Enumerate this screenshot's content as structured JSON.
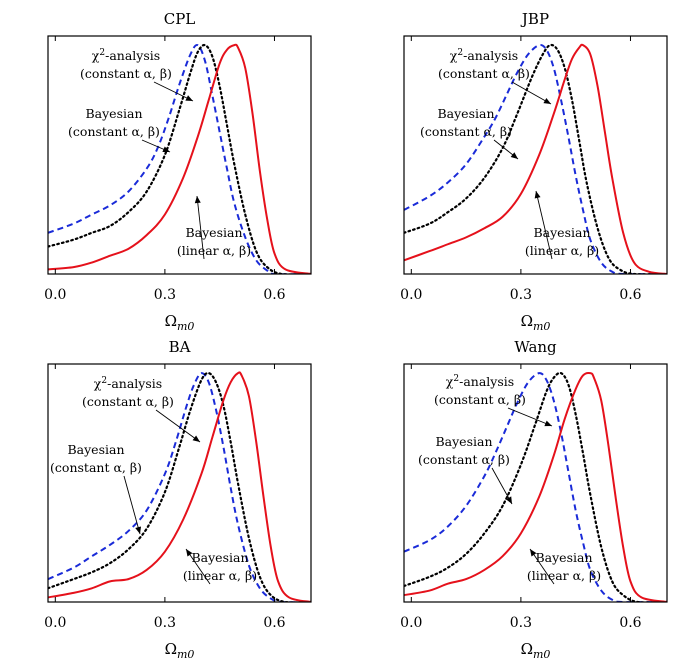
{
  "chart_data": [
    {
      "type": "line",
      "title": "CPL",
      "xlabel": "Ωm0",
      "xlim": [
        -0.02,
        0.7
      ],
      "ylim": [
        0,
        1.04
      ],
      "xticks": [
        0.0,
        0.3,
        0.6
      ],
      "xtick_labels": [
        "0.0",
        "0.3",
        "0.6"
      ],
      "series": [
        {
          "name": "χ2-analysis (constant α,β)",
          "color": "#1a2bd8",
          "style": "dashed",
          "x": [
            -0.02,
            0.05,
            0.1,
            0.15,
            0.2,
            0.25,
            0.28,
            0.31,
            0.34,
            0.37,
            0.39,
            0.41,
            0.43,
            0.45,
            0.47,
            0.49,
            0.52,
            0.55,
            0.58,
            0.6,
            0.7
          ],
          "y": [
            0.18,
            0.22,
            0.26,
            0.3,
            0.36,
            0.46,
            0.55,
            0.68,
            0.83,
            0.96,
            1.0,
            0.93,
            0.78,
            0.62,
            0.46,
            0.31,
            0.16,
            0.06,
            0.015,
            0.0,
            0.0
          ]
        },
        {
          "name": "Bayesian (constant α,β)",
          "color": "#000000",
          "style": "dotted",
          "x": [
            -0.02,
            0.05,
            0.1,
            0.15,
            0.2,
            0.25,
            0.3,
            0.34,
            0.37,
            0.39,
            0.41,
            0.43,
            0.45,
            0.47,
            0.49,
            0.52,
            0.55,
            0.58,
            0.62,
            0.7
          ],
          "y": [
            0.12,
            0.15,
            0.18,
            0.21,
            0.27,
            0.36,
            0.52,
            0.72,
            0.88,
            0.97,
            1.0,
            0.95,
            0.82,
            0.65,
            0.48,
            0.26,
            0.1,
            0.03,
            0.0,
            0.0
          ]
        },
        {
          "name": "Bayesian (linear α,β)",
          "color": "#e5111b",
          "style": "solid",
          "x": [
            -0.02,
            0.05,
            0.1,
            0.15,
            0.2,
            0.25,
            0.3,
            0.35,
            0.39,
            0.42,
            0.45,
            0.47,
            0.49,
            0.5,
            0.52,
            0.54,
            0.56,
            0.58,
            0.6,
            0.63,
            0.7
          ],
          "y": [
            0.02,
            0.03,
            0.05,
            0.08,
            0.11,
            0.17,
            0.26,
            0.42,
            0.6,
            0.76,
            0.92,
            0.98,
            1.0,
            0.99,
            0.9,
            0.7,
            0.45,
            0.24,
            0.09,
            0.02,
            0.0
          ]
        }
      ],
      "annotations": [
        {
          "lines": [
            "χ2-analysis",
            "(constant α, β)"
          ],
          "x": 0.13,
          "y": 0.92,
          "ax": 0.33,
          "ay": 0.8
        },
        {
          "lines": [
            "Bayesian",
            "(constant α, β)"
          ],
          "x": 0.12,
          "y": 0.7,
          "ax": 0.26,
          "ay": 0.53
        },
        {
          "lines": [
            "Bayesian",
            "(linear α, β)"
          ],
          "x": 0.33,
          "y": 0.12,
          "ax": 0.35,
          "ay": 0.3
        }
      ]
    },
    {
      "type": "line",
      "title": "JBP",
      "xlabel": "Ωm0",
      "xlim": [
        -0.02,
        0.7
      ],
      "ylim": [
        0,
        1.04
      ],
      "xticks": [
        0.0,
        0.3,
        0.6
      ],
      "xtick_labels": [
        "0.0",
        "0.3",
        "0.6"
      ],
      "series": [
        {
          "name": "χ2-analysis (constant α,β)",
          "color": "#1a2bd8",
          "style": "dashed",
          "x": [
            -0.02,
            0.05,
            0.1,
            0.15,
            0.2,
            0.23,
            0.26,
            0.29,
            0.32,
            0.35,
            0.37,
            0.39,
            0.41,
            0.43,
            0.45,
            0.47,
            0.49,
            0.52,
            0.55,
            0.58,
            0.7
          ],
          "y": [
            0.28,
            0.34,
            0.4,
            0.48,
            0.6,
            0.68,
            0.78,
            0.88,
            0.96,
            1.0,
            0.98,
            0.9,
            0.76,
            0.6,
            0.43,
            0.28,
            0.15,
            0.05,
            0.01,
            0.0,
            0.0
          ]
        },
        {
          "name": "Bayesian (constant α,β)",
          "color": "#000000",
          "style": "dotted",
          "x": [
            -0.02,
            0.05,
            0.1,
            0.15,
            0.2,
            0.25,
            0.29,
            0.33,
            0.36,
            0.38,
            0.4,
            0.42,
            0.44,
            0.46,
            0.48,
            0.51,
            0.54,
            0.57,
            0.61,
            0.7
          ],
          "y": [
            0.18,
            0.22,
            0.27,
            0.33,
            0.42,
            0.55,
            0.7,
            0.86,
            0.96,
            1.0,
            0.98,
            0.9,
            0.76,
            0.58,
            0.4,
            0.2,
            0.07,
            0.02,
            0.0,
            0.0
          ]
        },
        {
          "name": "Bayesian (linear α,β)",
          "color": "#e5111b",
          "style": "solid",
          "x": [
            -0.02,
            0.05,
            0.1,
            0.15,
            0.2,
            0.25,
            0.3,
            0.35,
            0.39,
            0.42,
            0.44,
            0.46,
            0.47,
            0.49,
            0.51,
            0.53,
            0.55,
            0.58,
            0.61,
            0.65,
            0.7
          ],
          "y": [
            0.06,
            0.1,
            0.13,
            0.16,
            0.2,
            0.25,
            0.35,
            0.52,
            0.7,
            0.85,
            0.94,
            0.99,
            1.0,
            0.96,
            0.82,
            0.62,
            0.42,
            0.18,
            0.05,
            0.01,
            0.0
          ]
        }
      ],
      "annotations": [
        {
          "lines": [
            "χ2-analysis",
            "(constant α, β)"
          ],
          "x": 0.14,
          "y": 0.92,
          "ax": 0.3,
          "ay": 0.85
        },
        {
          "lines": [
            "Bayesian",
            "(constant α, β)"
          ],
          "x": 0.12,
          "y": 0.7,
          "ax": 0.26,
          "ay": 0.52
        },
        {
          "lines": [
            "Bayesian",
            "(linear α, β)"
          ],
          "x": 0.36,
          "y": 0.14,
          "ax": 0.32,
          "ay": 0.36
        }
      ]
    },
    {
      "type": "line",
      "title": "BA",
      "xlabel": "Ωm0",
      "xlim": [
        -0.02,
        0.7
      ],
      "ylim": [
        0,
        1.04
      ],
      "xticks": [
        0.0,
        0.3,
        0.6
      ],
      "xtick_labels": [
        "0.0",
        "0.3",
        "0.6"
      ],
      "series": [
        {
          "name": "χ2-analysis (constant α,β)",
          "color": "#1a2bd8",
          "style": "dashed",
          "x": [
            -0.02,
            0.05,
            0.1,
            0.15,
            0.2,
            0.25,
            0.3,
            0.33,
            0.36,
            0.38,
            0.4,
            0.42,
            0.44,
            0.46,
            0.48,
            0.5,
            0.53,
            0.56,
            0.59,
            0.62,
            0.7
          ],
          "y": [
            0.1,
            0.15,
            0.2,
            0.25,
            0.31,
            0.4,
            0.56,
            0.7,
            0.86,
            0.95,
            1.0,
            0.96,
            0.84,
            0.68,
            0.5,
            0.34,
            0.16,
            0.06,
            0.015,
            0.0,
            0.0
          ]
        },
        {
          "name": "Bayesian (constant α,β)",
          "color": "#000000",
          "style": "dotted",
          "x": [
            -0.02,
            0.05,
            0.1,
            0.15,
            0.2,
            0.25,
            0.3,
            0.34,
            0.37,
            0.4,
            0.42,
            0.44,
            0.46,
            0.48,
            0.5,
            0.53,
            0.56,
            0.59,
            0.63,
            0.7
          ],
          "y": [
            0.06,
            0.1,
            0.13,
            0.17,
            0.23,
            0.32,
            0.48,
            0.68,
            0.84,
            0.97,
            1.0,
            0.96,
            0.86,
            0.7,
            0.52,
            0.28,
            0.11,
            0.03,
            0.0,
            0.0
          ]
        },
        {
          "name": "Bayesian (linear α,β)",
          "color": "#e5111b",
          "style": "solid",
          "x": [
            -0.02,
            0.05,
            0.1,
            0.15,
            0.2,
            0.25,
            0.3,
            0.35,
            0.4,
            0.43,
            0.46,
            0.48,
            0.5,
            0.51,
            0.53,
            0.55,
            0.57,
            0.59,
            0.61,
            0.64,
            0.7
          ],
          "y": [
            0.02,
            0.04,
            0.06,
            0.09,
            0.1,
            0.14,
            0.22,
            0.36,
            0.56,
            0.72,
            0.88,
            0.96,
            1.0,
            0.99,
            0.9,
            0.7,
            0.46,
            0.24,
            0.09,
            0.02,
            0.0
          ]
        }
      ],
      "annotations": [
        {
          "lines": [
            "χ2-analysis",
            "(constant α, β)"
          ],
          "x": 0.13,
          "y": 0.92,
          "ax": 0.35,
          "ay": 0.76
        },
        {
          "lines": [
            "Bayesian",
            "(constant α, β)"
          ],
          "x": 0.1,
          "y": 0.62,
          "ax": 0.2,
          "ay": 0.28
        },
        {
          "lines": [
            "Bayesian",
            "(linear α, β)"
          ],
          "x": 0.36,
          "y": 0.16,
          "ax": 0.28,
          "ay": 0.22
        }
      ]
    },
    {
      "type": "line",
      "title": "Wang",
      "xlabel": "Ωm0",
      "xlim": [
        -0.02,
        0.7
      ],
      "ylim": [
        0,
        1.04
      ],
      "xticks": [
        0.0,
        0.3,
        0.6
      ],
      "xtick_labels": [
        "0.0",
        "0.3",
        "0.6"
      ],
      "series": [
        {
          "name": "χ2-analysis (constant α,β)",
          "color": "#1a2bd8",
          "style": "dashed",
          "x": [
            -0.02,
            0.05,
            0.1,
            0.15,
            0.2,
            0.23,
            0.26,
            0.29,
            0.32,
            0.35,
            0.37,
            0.39,
            0.41,
            0.43,
            0.45,
            0.47,
            0.49,
            0.52,
            0.55,
            0.58,
            0.7
          ],
          "y": [
            0.22,
            0.27,
            0.33,
            0.42,
            0.55,
            0.65,
            0.76,
            0.87,
            0.96,
            1.0,
            0.97,
            0.88,
            0.74,
            0.57,
            0.4,
            0.26,
            0.14,
            0.05,
            0.01,
            0.0,
            0.0
          ]
        },
        {
          "name": "Bayesian (constant α,β)",
          "color": "#000000",
          "style": "dotted",
          "x": [
            -0.02,
            0.05,
            0.1,
            0.15,
            0.2,
            0.25,
            0.3,
            0.34,
            0.37,
            0.39,
            0.41,
            0.43,
            0.45,
            0.47,
            0.49,
            0.52,
            0.55,
            0.58,
            0.62,
            0.7
          ],
          "y": [
            0.07,
            0.11,
            0.15,
            0.21,
            0.3,
            0.42,
            0.6,
            0.78,
            0.92,
            0.98,
            1.0,
            0.95,
            0.82,
            0.65,
            0.47,
            0.24,
            0.09,
            0.03,
            0.0,
            0.0
          ]
        },
        {
          "name": "Bayesian (linear α,β)",
          "color": "#e5111b",
          "style": "solid",
          "x": [
            -0.02,
            0.05,
            0.1,
            0.15,
            0.2,
            0.25,
            0.3,
            0.35,
            0.39,
            0.42,
            0.45,
            0.47,
            0.49,
            0.5,
            0.52,
            0.54,
            0.56,
            0.58,
            0.6,
            0.63,
            0.7
          ],
          "y": [
            0.03,
            0.05,
            0.08,
            0.1,
            0.14,
            0.2,
            0.3,
            0.46,
            0.64,
            0.8,
            0.93,
            0.99,
            1.0,
            0.98,
            0.88,
            0.68,
            0.45,
            0.24,
            0.09,
            0.02,
            0.0
          ]
        }
      ],
      "annotations": [
        {
          "lines": [
            "χ2-analysis",
            "(constant α, β)"
          ],
          "x": 0.13,
          "y": 0.92,
          "ax": 0.3,
          "ay": 0.88
        },
        {
          "lines": [
            "Bayesian",
            "(constant α, β)"
          ],
          "x": 0.11,
          "y": 0.7,
          "ax": 0.24,
          "ay": 0.45
        },
        {
          "lines": [
            "Bayesian",
            "(linear α, β)"
          ],
          "x": 0.36,
          "y": 0.14,
          "ax": 0.28,
          "ay": 0.22
        }
      ]
    }
  ]
}
